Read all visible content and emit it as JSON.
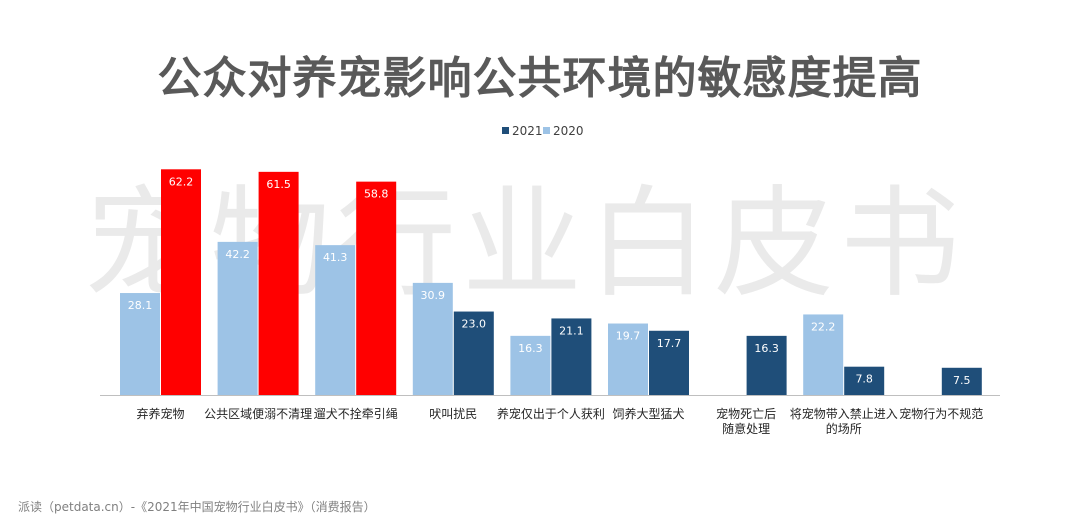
{
  "title": "公众对养宠影响公共环境的敏感度提高",
  "watermark": "宠物行业白皮书",
  "source": "派读（petdata.cn）-《2021年中国宠物行业白皮书》（消费报告）",
  "colors": {
    "y2021": "#1f4e79",
    "y2020": "#9dc3e6",
    "highlight": "#ff0000"
  },
  "chart_data": {
    "type": "bar",
    "title": "公众对养宠影响公共环境的敏感度提高",
    "xlabel": "",
    "ylabel": "",
    "ylim": [
      0,
      70
    ],
    "grid": false,
    "legend": "top-center",
    "categories": [
      [
        "弃养宠物"
      ],
      [
        "公共区域便溺不清理"
      ],
      [
        "遛犬不拴牵引绳"
      ],
      [
        "吠叫扰民"
      ],
      [
        "养宠仅出于个人获利"
      ],
      [
        "饲养大型猛犬"
      ],
      [
        "宠物死亡后",
        "随意处理"
      ],
      [
        "将宠物带入禁止进入",
        "的场所"
      ],
      [
        "宠物行为不规范"
      ]
    ],
    "series": [
      {
        "name": "2021",
        "values": [
          62.2,
          61.5,
          58.8,
          23.0,
          21.1,
          17.7,
          16.3,
          7.8,
          7.5
        ]
      },
      {
        "name": "2020",
        "values": [
          28.1,
          42.2,
          41.3,
          30.9,
          16.3,
          19.7,
          null,
          22.2,
          null
        ]
      }
    ],
    "highlighted_categories": [
      0,
      1,
      2
    ]
  }
}
